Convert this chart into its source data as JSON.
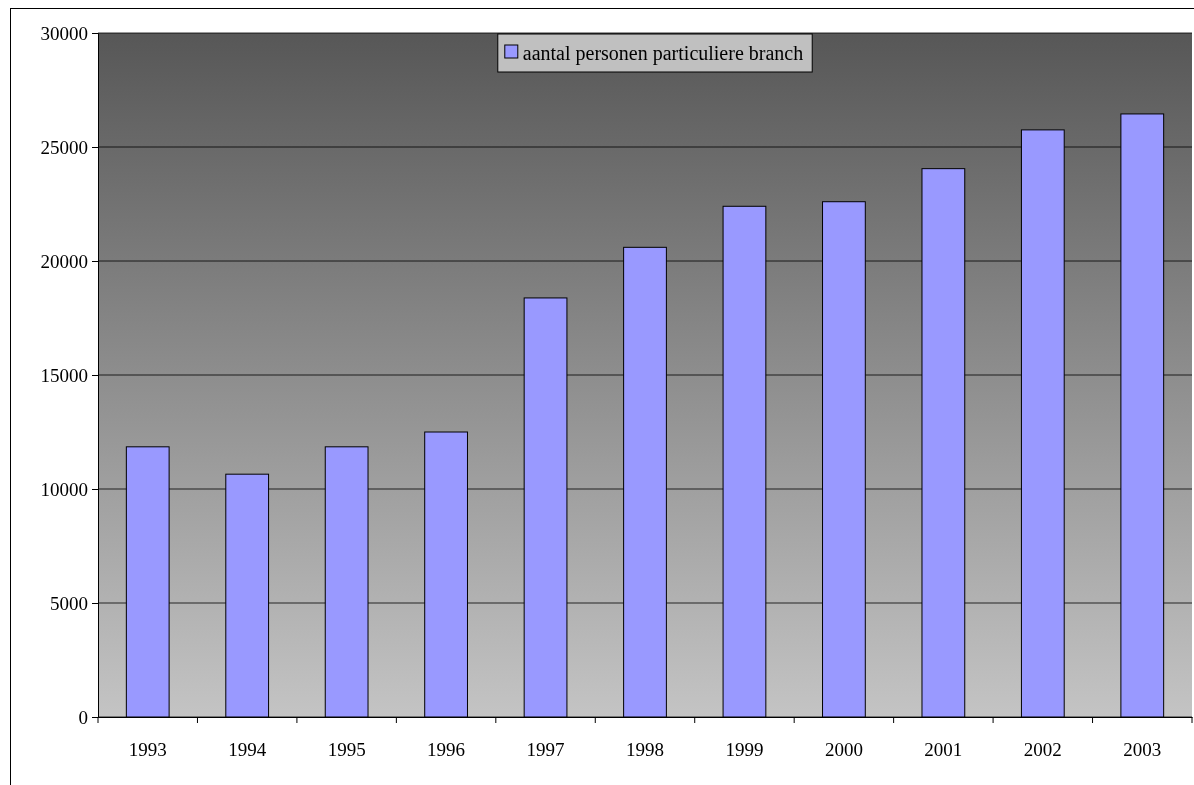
{
  "chart_data": {
    "type": "bar",
    "categories": [
      "1993",
      "1994",
      "1995",
      "1996",
      "1997",
      "1998",
      "1999",
      "2000",
      "2001",
      "2002",
      "2003"
    ],
    "series": [
      {
        "name": "aantal personen particuliere branch",
        "color": "#9999ff",
        "values": [
          11850,
          10650,
          11850,
          12500,
          18380,
          20600,
          22400,
          22600,
          24050,
          25750,
          26450
        ]
      }
    ],
    "ylim": [
      0,
      30000
    ],
    "yticks": [
      0,
      5000,
      10000,
      15000,
      20000,
      25000,
      30000
    ],
    "grid": "y",
    "legend": "top"
  }
}
